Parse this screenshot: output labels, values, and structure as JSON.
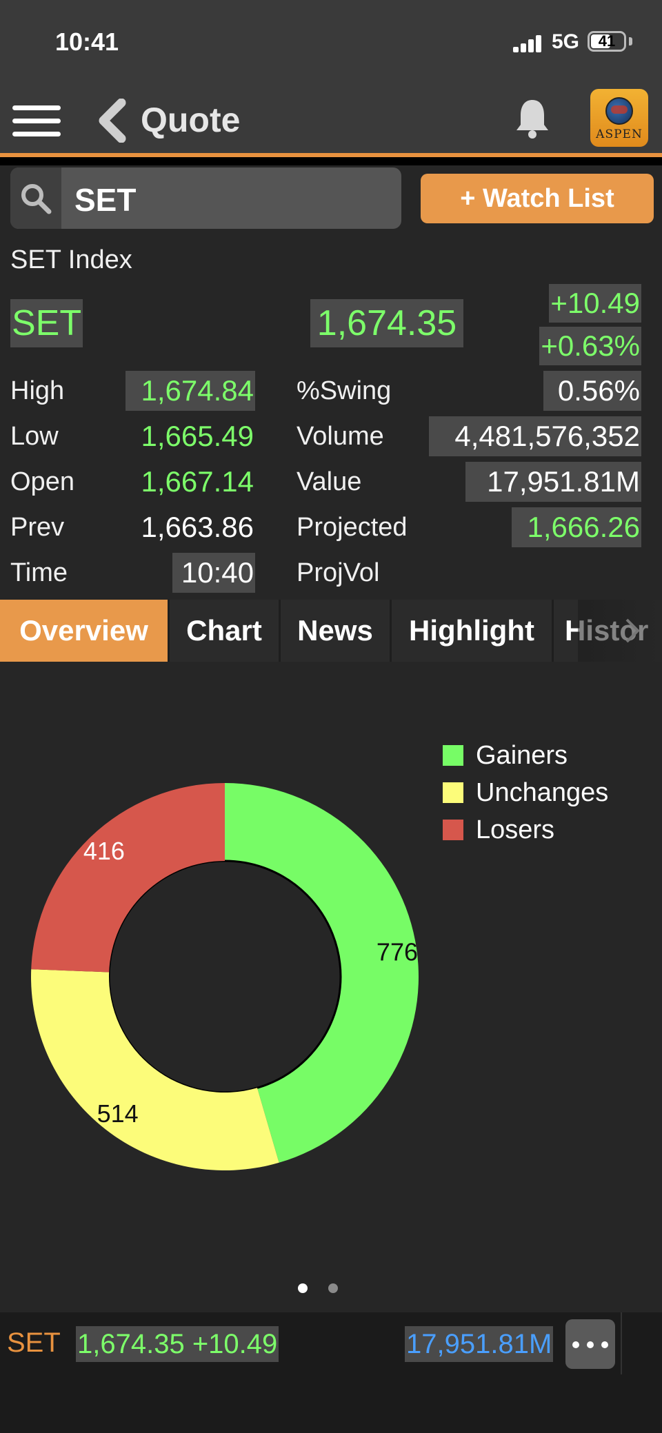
{
  "status_bar": {
    "time": "10:41",
    "network": "5G",
    "battery": "41"
  },
  "nav": {
    "title": "Quote",
    "logo_text": "ASPEN"
  },
  "search": {
    "value": "SET",
    "watch_button": "+ Watch List"
  },
  "quote": {
    "index_name": "SET Index",
    "symbol": "SET",
    "price": "1,674.35",
    "change": "+10.49",
    "change_pct": "+0.63%"
  },
  "stats": {
    "high": {
      "label": "High",
      "value": "1,674.84"
    },
    "low": {
      "label": "Low",
      "value": "1,665.49"
    },
    "open": {
      "label": "Open",
      "value": "1,667.14"
    },
    "prev": {
      "label": "Prev",
      "value": "1,663.86"
    },
    "time": {
      "label": "Time",
      "value": "10:40"
    },
    "swing": {
      "label": "%Swing",
      "value": "0.56%"
    },
    "volume": {
      "label": "Volume",
      "value": "4,481,576,352"
    },
    "value": {
      "label": "Value",
      "value": "17,951.81M"
    },
    "projected": {
      "label": "Projected",
      "value": "1,666.26"
    },
    "projvol": {
      "label": "ProjVol",
      "value": ""
    }
  },
  "tabs": [
    {
      "label": "Overview",
      "active": true
    },
    {
      "label": "Chart",
      "active": false
    },
    {
      "label": "News",
      "active": false
    },
    {
      "label": "Highlight",
      "active": false
    },
    {
      "label": "Histor",
      "active": false
    }
  ],
  "chart_data": {
    "type": "pie",
    "variant": "donut",
    "categories": [
      "Gainers",
      "Unchanges",
      "Losers"
    ],
    "values": [
      776,
      514,
      416
    ],
    "colors": [
      "#77fc66",
      "#fcfc7a",
      "#d6574c"
    ],
    "legend_position": "top-right"
  },
  "pager": {
    "pages": 2,
    "current": 1
  },
  "footer": {
    "symbol": "SET",
    "price_change": "1,674.35 +10.49",
    "value": "17,951.81M"
  },
  "colors": {
    "accent": "#e8994b",
    "up": "#7dff6a",
    "value_blue": "#4a9fff"
  }
}
